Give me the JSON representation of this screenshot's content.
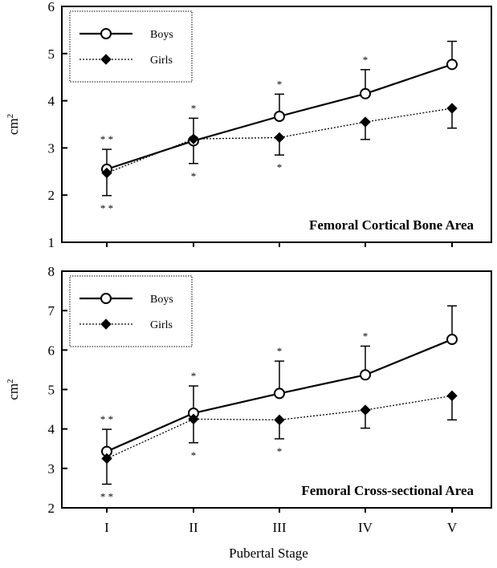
{
  "chart_data": [
    {
      "type": "line",
      "title": "Femoral Cortical Bone Area",
      "ylabel": "cm",
      "ylabel_sup": "2",
      "xlabel": "",
      "ylim": [
        1,
        6
      ],
      "yticks": [
        "1",
        "2",
        "3",
        "4",
        "5",
        "6"
      ],
      "categories": [
        "I",
        "II",
        "III",
        "IV",
        "V"
      ],
      "legend": "top-left",
      "series": [
        {
          "name": "Boys",
          "marker": "open-circle",
          "line": "solid",
          "values": [
            2.55,
            3.15,
            3.67,
            4.15,
            4.77
          ],
          "error_upper": [
            2.97,
            3.63,
            4.14,
            4.66,
            5.26
          ],
          "significance": [
            "* *",
            "*",
            "*",
            "*",
            ""
          ]
        },
        {
          "name": "Girls",
          "marker": "filled-diamond",
          "line": "dotted",
          "values": [
            2.47,
            3.19,
            3.22,
            3.55,
            3.84
          ],
          "error_lower": [
            1.99,
            2.67,
            2.85,
            3.18,
            3.42
          ],
          "significance": [
            "* *",
            "*",
            "*",
            "",
            ""
          ]
        }
      ]
    },
    {
      "type": "line",
      "title": "Femoral Cross-sectional Area",
      "ylabel": "cm",
      "ylabel_sup": "2",
      "xlabel": "Pubertal Stage",
      "ylim": [
        2,
        8
      ],
      "yticks": [
        "2",
        "3",
        "4",
        "5",
        "6",
        "7",
        "8"
      ],
      "categories": [
        "I",
        "II",
        "III",
        "IV",
        "V"
      ],
      "legend": "top-left",
      "series": [
        {
          "name": "Boys",
          "marker": "open-circle",
          "line": "solid",
          "values": [
            3.43,
            4.4,
            4.9,
            5.37,
            6.27
          ],
          "error_upper": [
            3.99,
            5.09,
            5.72,
            6.1,
            7.12
          ],
          "significance": [
            "* *",
            "*",
            "*",
            "*",
            ""
          ]
        },
        {
          "name": "Girls",
          "marker": "filled-diamond",
          "line": "dotted",
          "values": [
            3.25,
            4.25,
            4.23,
            4.48,
            4.84
          ],
          "error_lower": [
            2.6,
            3.65,
            3.75,
            4.02,
            4.23
          ],
          "significance": [
            "* *",
            "*",
            "*",
            "",
            ""
          ]
        }
      ]
    }
  ]
}
